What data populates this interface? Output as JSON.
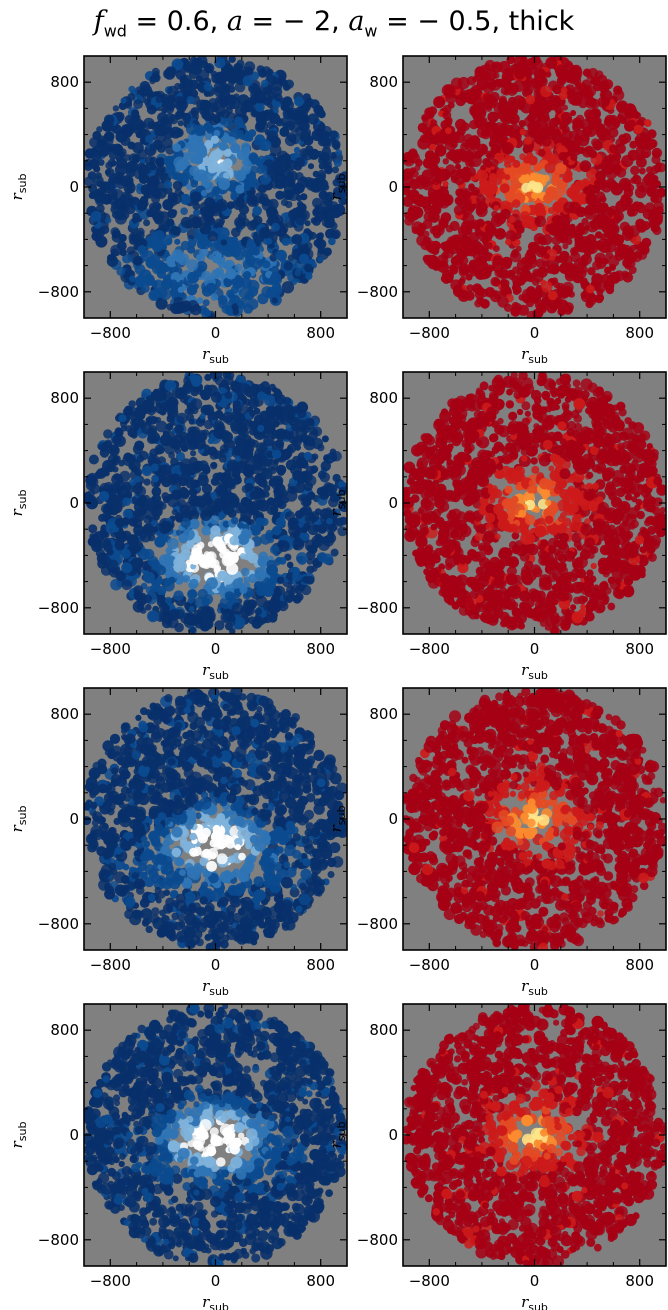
{
  "figure": {
    "title": {
      "f_symbol": "f",
      "f_sub": "wd",
      "f_value": " = 0.6, ",
      "a_symbol": "a",
      "a_value": " = − 2, ",
      "aw_symbol": "a",
      "aw_sub": "w",
      "aw_value": " = − 0.5, thick"
    },
    "colors": {
      "background": "#808080",
      "blue_map": [
        "#08306b",
        "#0b4a8f",
        "#2f74b5",
        "#7fb3dc",
        "#ffffff"
      ],
      "red_map": [
        "#a50014",
        "#cc1a1a",
        "#e34a24",
        "#fb8b2e",
        "#fee58a"
      ]
    }
  },
  "chart_data": [
    {
      "type": "heatmap",
      "row": 1,
      "column": 1,
      "colormap": "blue",
      "xlabel": "r_sub",
      "ylabel": "r_sub",
      "xlim": [
        -1000,
        1000
      ],
      "ylim": [
        -1000,
        1000
      ],
      "xticks": [
        -800,
        0,
        800
      ],
      "yticks": [
        -800,
        0,
        800
      ],
      "tick_labels": [
        "−800",
        "0",
        "800"
      ],
      "bright_center": [
        0,
        200
      ],
      "halo_center": [
        0,
        -650
      ],
      "disk_radius": 1000
    },
    {
      "type": "heatmap",
      "row": 1,
      "column": 2,
      "colormap": "red",
      "xlabel": "r_sub",
      "ylabel": "r_sub",
      "xlim": [
        -1000,
        1000
      ],
      "ylim": [
        -1000,
        1000
      ],
      "xticks": [
        -800,
        0,
        800
      ],
      "yticks": [
        -800,
        0,
        800
      ],
      "tick_labels": [
        "−800",
        "0",
        "800"
      ],
      "bright_center": [
        0,
        0
      ],
      "disk_radius": 1000
    },
    {
      "type": "heatmap",
      "row": 2,
      "column": 1,
      "colormap": "blue",
      "xlabel": "r_sub",
      "ylabel": "r_sub",
      "xlim": [
        -1000,
        1000
      ],
      "ylim": [
        -1000,
        1000
      ],
      "xticks": [
        -800,
        0,
        800
      ],
      "yticks": [
        -800,
        0,
        800
      ],
      "tick_labels": [
        "−800",
        "0",
        "800"
      ],
      "bright_center": [
        0,
        -400
      ],
      "halo_center": [
        0,
        -450
      ],
      "disk_radius": 1000
    },
    {
      "type": "heatmap",
      "row": 2,
      "column": 2,
      "colormap": "red",
      "xlabel": "r_sub",
      "ylabel": "r_sub",
      "xlim": [
        -1000,
        1000
      ],
      "ylim": [
        -1000,
        1000
      ],
      "xticks": [
        -800,
        0,
        800
      ],
      "yticks": [
        -800,
        0,
        800
      ],
      "tick_labels": [
        "−800",
        "0",
        "800"
      ],
      "bright_center": [
        0,
        0
      ],
      "disk_radius": 1000
    },
    {
      "type": "heatmap",
      "row": 3,
      "column": 1,
      "colormap": "blue",
      "xlabel": "r_sub",
      "ylabel": "r_sub",
      "xlim": [
        -1000,
        1000
      ],
      "ylim": [
        -1000,
        1000
      ],
      "xticks": [
        -800,
        0,
        800
      ],
      "yticks": [
        -800,
        0,
        800
      ],
      "tick_labels": [
        "−800",
        "0",
        "800"
      ],
      "bright_center": [
        0,
        -150
      ],
      "halo_center": [
        0,
        -300
      ],
      "disk_radius": 1000
    },
    {
      "type": "heatmap",
      "row": 3,
      "column": 2,
      "colormap": "red",
      "xlabel": "r_sub",
      "ylabel": "r_sub",
      "xlim": [
        -1000,
        1000
      ],
      "ylim": [
        -1000,
        1000
      ],
      "xticks": [
        -800,
        0,
        800
      ],
      "yticks": [
        -800,
        0,
        800
      ],
      "tick_labels": [
        "−800",
        "0",
        "800"
      ],
      "bright_center": [
        0,
        0
      ],
      "disk_radius": 1000
    },
    {
      "type": "heatmap",
      "row": 4,
      "column": 1,
      "colormap": "blue",
      "xlabel": "r_sub",
      "ylabel": "r_sub",
      "xlim": [
        -1000,
        1000
      ],
      "ylim": [
        -1000,
        1000
      ],
      "xticks": [
        -800,
        0,
        800
      ],
      "yticks": [
        -800,
        0,
        800
      ],
      "tick_labels": [
        "−800",
        "0",
        "800"
      ],
      "bright_center": [
        0,
        0
      ],
      "halo_center": [
        0,
        -100
      ],
      "disk_radius": 1000
    },
    {
      "type": "heatmap",
      "row": 4,
      "column": 2,
      "colormap": "red",
      "xlabel": "r_sub",
      "ylabel": "r_sub",
      "xlim": [
        -1000,
        1000
      ],
      "ylim": [
        -1000,
        1000
      ],
      "xticks": [
        -800,
        0,
        800
      ],
      "yticks": [
        -800,
        0,
        800
      ],
      "tick_labels": [
        "−800",
        "0",
        "800"
      ],
      "bright_center": [
        0,
        0
      ],
      "disk_radius": 1000
    }
  ]
}
